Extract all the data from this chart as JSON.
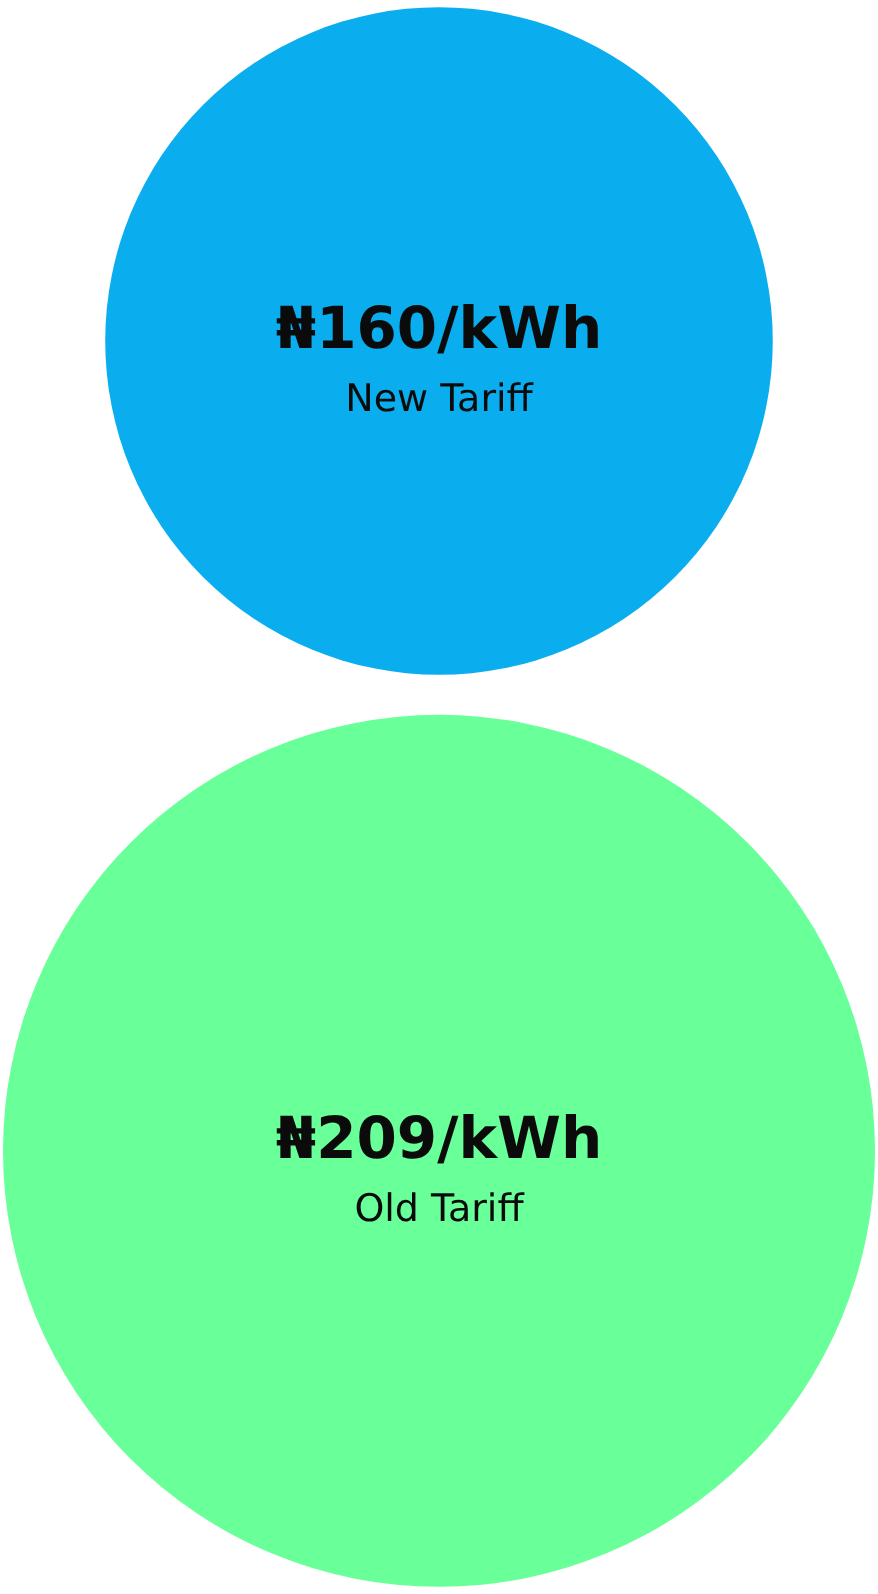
{
  "chart_data": {
    "type": "other",
    "categories": [
      "New Tariff",
      "Old Tariff"
    ],
    "values": [
      160,
      209
    ],
    "value_labels": [
      "₦160/kWh",
      "₦209/kWh"
    ],
    "colors": [
      "#0aaeef",
      "#69ff99"
    ]
  }
}
